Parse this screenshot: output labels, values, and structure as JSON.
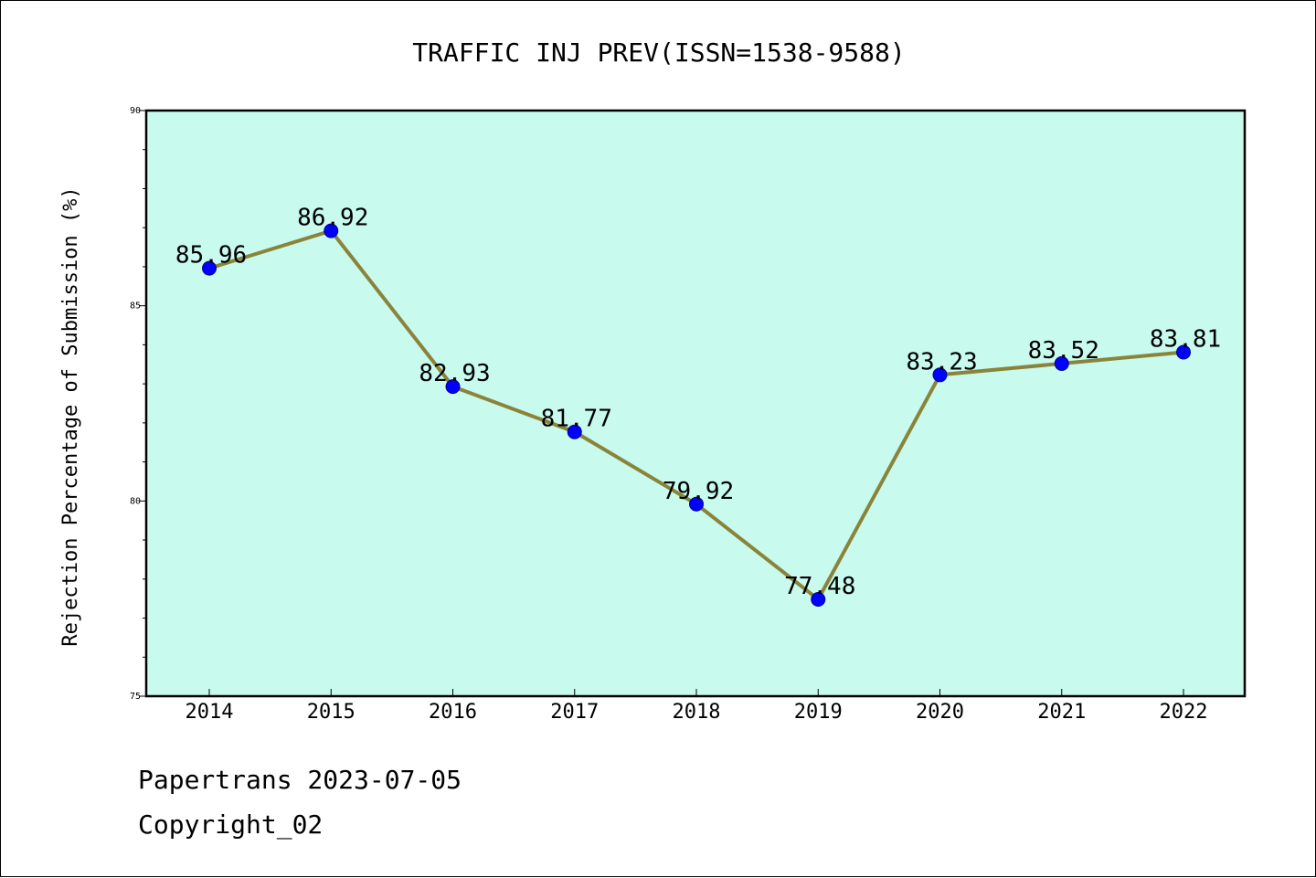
{
  "footer": {
    "date_line": "Papertrans 2023-07-05",
    "copyright_line": "Copyright_02"
  },
  "chart_data": {
    "type": "line",
    "title": "TRAFFIC INJ PREV(ISSN=1538-9588)",
    "xlabel": "",
    "ylabel": "Rejection Percentage of Submission (%)",
    "categories": [
      "2014",
      "2015",
      "2016",
      "2017",
      "2018",
      "2019",
      "2020",
      "2021",
      "2022"
    ],
    "series": [
      {
        "values": [
          85.96,
          86.92,
          82.93,
          81.77,
          79.92,
          77.48,
          83.23,
          83.52,
          83.81
        ],
        "data_labels": [
          "85.96",
          "86.92",
          "82.93",
          "81.77",
          "79.92",
          "77.48",
          "83.23",
          "83.52",
          "83.81"
        ]
      }
    ],
    "ylim": [
      75,
      90
    ],
    "yticks": [
      75,
      80,
      85,
      90
    ],
    "ytick_labels": [
      "75",
      "80",
      "85",
      "90"
    ],
    "grid": false,
    "colors": {
      "plot_background": "#c8faee",
      "line": "#8a843a",
      "marker": "#0000ff"
    }
  }
}
